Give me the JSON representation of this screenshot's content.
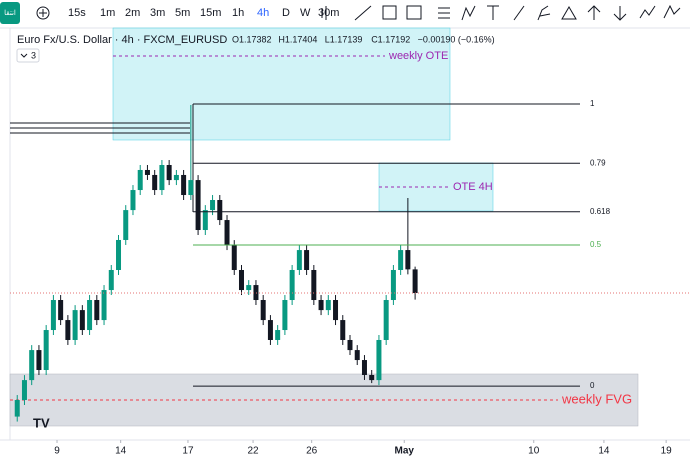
{
  "toolbar": {
    "button": "انتقا",
    "intervals": [
      "15s",
      "1m",
      "2m",
      "3m",
      "5m",
      "15m",
      "1h",
      "4h",
      "D",
      "W",
      "30m"
    ],
    "active": 7
  },
  "legend": {
    "symbol": "Euro Fx/U.S. Dollar · 4h · FXCM_EURUSD",
    "ohlc": [
      "O1.17382",
      "H1.17404",
      "L1.17139",
      "C1.17192",
      "−0.00190 (−0.16%)"
    ],
    "indicators": "3"
  },
  "chart_data": {
    "type": "candlestick",
    "open": [
      1.162,
      1.16333,
      1.16493,
      1.16734,
      1.16574,
      1.16895,
      1.17136,
      1.16975,
      1.16815,
      1.17055,
      1.16895,
      1.17136,
      1.16975,
      1.17216,
      1.17377,
      1.17618,
      1.17858,
      1.18019,
      1.1818,
      1.1814,
      1.18019,
      1.1822,
      1.18099,
      1.1814,
      1.17979,
      1.18099,
      1.17698,
      1.17858,
      1.17939,
      1.17778,
      1.17577,
      1.17377,
      1.17216,
      1.17256,
      1.17136,
      1.16975,
      1.16815,
      1.16895,
      1.17136,
      1.17377,
      1.17537,
      1.17377,
      1.17136,
      1.17055,
      1.17136,
      1.16975,
      1.16815,
      1.16734,
      1.16654,
      1.16534,
      1.16493,
      1.16815,
      1.17136,
      1.17377,
      1.17537,
      1.17382
    ],
    "high": [
      1.16373,
      1.16533,
      1.16774,
      1.16774,
      1.16935,
      1.17176,
      1.17176,
      1.17015,
      1.17095,
      1.17095,
      1.17176,
      1.17176,
      1.17256,
      1.17417,
      1.17658,
      1.17898,
      1.18059,
      1.1822,
      1.1822,
      1.1818,
      1.1826,
      1.1826,
      1.1818,
      1.1818,
      1.18702,
      1.18139,
      1.17898,
      1.17979,
      1.17979,
      1.17818,
      1.17617,
      1.17417,
      1.17296,
      1.17296,
      1.17176,
      1.17015,
      1.16935,
      1.17176,
      1.17417,
      1.17577,
      1.17577,
      1.17417,
      1.17176,
      1.17176,
      1.17176,
      1.17015,
      1.16855,
      1.16774,
      1.16694,
      1.16574,
      1.16855,
      1.17176,
      1.17417,
      1.17577,
      1.17955,
      1.17404
    ],
    "low": [
      1.1616,
      1.16293,
      1.16453,
      1.16534,
      1.16534,
      1.16855,
      1.16935,
      1.16775,
      1.16775,
      1.16855,
      1.16855,
      1.16935,
      1.16935,
      1.17176,
      1.17337,
      1.17578,
      1.17818,
      1.17979,
      1.181,
      1.17979,
      1.17979,
      1.18059,
      1.18059,
      1.17939,
      1.17939,
      1.17658,
      1.17658,
      1.17818,
      1.17738,
      1.17537,
      1.17337,
      1.17176,
      1.17176,
      1.17096,
      1.16935,
      1.16775,
      1.16775,
      1.16855,
      1.17096,
      1.17337,
      1.17337,
      1.17096,
      1.17015,
      1.17015,
      1.16935,
      1.16775,
      1.16694,
      1.16614,
      1.16494,
      1.16469,
      1.16453,
      1.16775,
      1.17096,
      1.17337,
      1.17342,
      1.17139
    ],
    "close": [
      1.16333,
      1.16493,
      1.16734,
      1.16574,
      1.16895,
      1.17136,
      1.16975,
      1.16815,
      1.17055,
      1.16895,
      1.17136,
      1.16975,
      1.17216,
      1.17377,
      1.17618,
      1.17858,
      1.18019,
      1.1818,
      1.1814,
      1.18019,
      1.1822,
      1.18099,
      1.1814,
      1.17979,
      1.18099,
      1.17698,
      1.17858,
      1.17939,
      1.17778,
      1.17577,
      1.17377,
      1.17216,
      1.17256,
      1.17136,
      1.16975,
      1.16815,
      1.16895,
      1.17136,
      1.17377,
      1.17537,
      1.17377,
      1.17136,
      1.17055,
      1.17136,
      1.16975,
      1.16815,
      1.16734,
      1.16654,
      1.16534,
      1.16493,
      1.16815,
      1.17136,
      1.17377,
      1.17537,
      1.17382,
      1.17192
    ],
    "up_color": "#089981",
    "down_color": "#131722",
    "xlim": [
      -1,
      93
    ],
    "ylim": [
      1.16012,
      1.1932
    ],
    "xticks": [
      {
        "value": 5.5,
        "label": "9"
      },
      {
        "value": 14.3,
        "label": "14"
      },
      {
        "value": 23.6,
        "label": "17"
      },
      {
        "value": 32.6,
        "label": "22"
      },
      {
        "value": 40.7,
        "label": "26"
      },
      {
        "value": 53.5,
        "label": "May"
      },
      {
        "value": 71.4,
        "label": "10"
      },
      {
        "value": 81.1,
        "label": "14"
      },
      {
        "value": 89.7,
        "label": "19"
      }
    ],
    "fib": {
      "price_0": 1.16445,
      "price_1": 1.1871,
      "levels": [
        1,
        0.79,
        0.618,
        0.5,
        0
      ],
      "colors": [
        "#131722",
        "#131722",
        "#131722",
        "#4caf50",
        "#131722"
      ]
    }
  },
  "boxes": {
    "weekly_ote": "weekly OTE",
    "ote_4h": "OTE 4H",
    "weekly_fvg": "weekly FVG"
  }
}
